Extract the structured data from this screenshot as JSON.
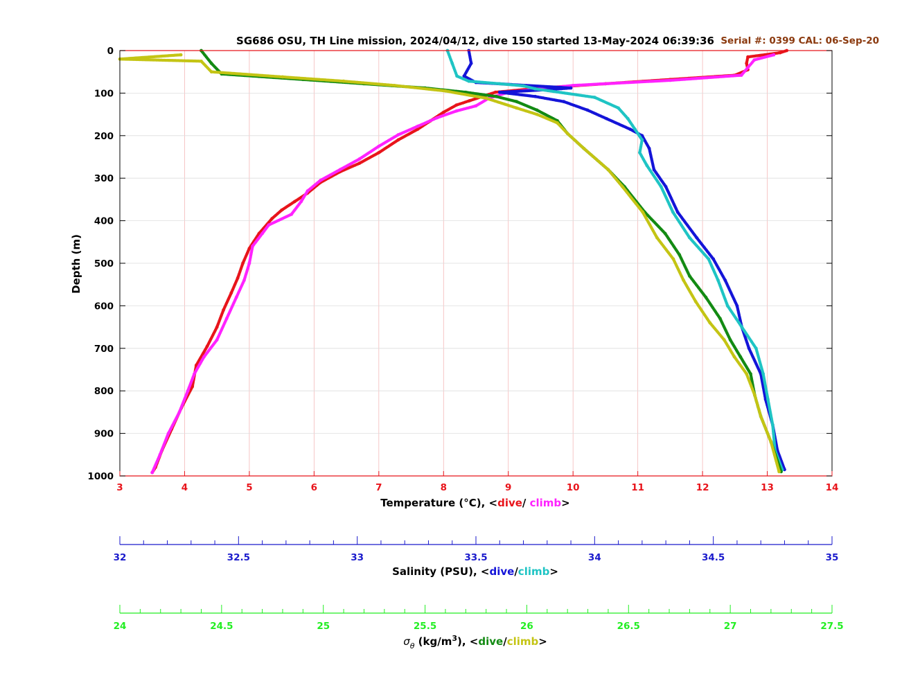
{
  "chart_data": {
    "type": "scatter",
    "title": "SG686 OSU, TH Line mission, 2024/04/12, dive 150 started 13-May-2024 06:39:36",
    "annotation": "Serial #: 0399  CAL: 06-Sep-20",
    "ylabel": "Depth (m)",
    "ylim": [
      1000,
      0
    ],
    "yticks": [
      0,
      100,
      200,
      300,
      400,
      500,
      600,
      700,
      800,
      900,
      1000
    ],
    "grid": true,
    "colors": {
      "temperature_axis": "#e8141b",
      "salinity_axis": "#1a1acc",
      "density_axis": "#22ee22",
      "temp_dive": "#e8141b",
      "temp_climb": "#ff22ff",
      "sal_dive": "#1414d8",
      "sal_climb": "#1fc4c4",
      "dens_dive": "#138a13",
      "dens_climb": "#c4c414",
      "annotation": "#8b3a0f"
    },
    "axes": {
      "temperature": {
        "label_prefix": "Temperature (°C), <",
        "dive_word": "dive",
        "separator": "/ ",
        "climb_word": "climb",
        "label_suffix": ">",
        "range": [
          3,
          14
        ],
        "ticks": [
          "3",
          "4",
          "5",
          "6",
          "7",
          "8",
          "9",
          "10",
          "11",
          "12",
          "13",
          "14"
        ]
      },
      "salinity": {
        "label_prefix": "Salinity (PSU), <",
        "dive_word": "dive",
        "separator": "/",
        "climb_word": "climb",
        "label_suffix": ">",
        "range": [
          32,
          35
        ],
        "ticks": [
          "32",
          "32.5",
          "33",
          "33.5",
          "34",
          "34.5",
          "35"
        ]
      },
      "density": {
        "label_symbol": "σ",
        "label_subscript": "θ",
        "label_unit": " (kg/m",
        "label_sup": "3",
        "label_unit_end": "), <",
        "dive_word": "dive",
        "separator": "/",
        "climb_word": "climb",
        "label_suffix": ">",
        "range": [
          24,
          27.5
        ],
        "ticks": [
          "24",
          "24.5",
          "25",
          "25.5",
          "26",
          "26.5",
          "27",
          "27.5"
        ]
      }
    },
    "series": [
      {
        "name": "dive",
        "quantity": "temperature",
        "points": [
          [
            13.3,
            0
          ],
          [
            13.2,
            5
          ],
          [
            12.7,
            15
          ],
          [
            12.68,
            30
          ],
          [
            12.7,
            45
          ],
          [
            12.5,
            58
          ],
          [
            11.5,
            68
          ],
          [
            10.5,
            78
          ],
          [
            9.5,
            88
          ],
          [
            8.8,
            98
          ],
          [
            8.6,
            108
          ],
          [
            8.4,
            118
          ],
          [
            8.2,
            128
          ],
          [
            8.0,
            145
          ],
          [
            7.8,
            165
          ],
          [
            7.6,
            185
          ],
          [
            7.3,
            210
          ],
          [
            7.0,
            240
          ],
          [
            6.7,
            265
          ],
          [
            6.4,
            285
          ],
          [
            6.1,
            310
          ],
          [
            5.9,
            335
          ],
          [
            5.7,
            355
          ],
          [
            5.5,
            375
          ],
          [
            5.35,
            395
          ],
          [
            5.15,
            430
          ],
          [
            5.0,
            465
          ],
          [
            4.9,
            500
          ],
          [
            4.82,
            535
          ],
          [
            4.72,
            570
          ],
          [
            4.6,
            610
          ],
          [
            4.5,
            650
          ],
          [
            4.35,
            695
          ],
          [
            4.18,
            740
          ],
          [
            4.12,
            790
          ],
          [
            3.95,
            840
          ],
          [
            3.8,
            890
          ],
          [
            3.65,
            940
          ],
          [
            3.55,
            980
          ],
          [
            3.5,
            992
          ]
        ]
      },
      {
        "name": "climb",
        "quantity": "temperature",
        "points": [
          [
            13.1,
            10
          ],
          [
            12.8,
            22
          ],
          [
            12.7,
            40
          ],
          [
            12.6,
            58
          ],
          [
            11.5,
            70
          ],
          [
            10.0,
            82
          ],
          [
            9.0,
            98
          ],
          [
            8.7,
            112
          ],
          [
            8.5,
            130
          ],
          [
            8.2,
            142
          ],
          [
            7.9,
            158
          ],
          [
            7.6,
            178
          ],
          [
            7.3,
            198
          ],
          [
            7.0,
            225
          ],
          [
            6.7,
            255
          ],
          [
            6.4,
            280
          ],
          [
            6.1,
            305
          ],
          [
            5.9,
            330
          ],
          [
            5.8,
            355
          ],
          [
            5.65,
            385
          ],
          [
            5.3,
            410
          ],
          [
            5.2,
            430
          ],
          [
            5.05,
            460
          ],
          [
            5.0,
            500
          ],
          [
            4.92,
            540
          ],
          [
            4.8,
            580
          ],
          [
            4.65,
            630
          ],
          [
            4.5,
            680
          ],
          [
            4.3,
            720
          ],
          [
            4.15,
            760
          ],
          [
            4.05,
            800
          ],
          [
            3.92,
            850
          ],
          [
            3.75,
            900
          ],
          [
            3.62,
            950
          ],
          [
            3.5,
            992
          ]
        ]
      },
      {
        "name": "dive",
        "quantity": "salinity",
        "points": [
          [
            33.47,
            0
          ],
          [
            33.48,
            30
          ],
          [
            33.45,
            60
          ],
          [
            33.5,
            75
          ],
          [
            33.9,
            88
          ],
          [
            33.8,
            92
          ],
          [
            33.6,
            98
          ],
          [
            33.75,
            108
          ],
          [
            33.87,
            120
          ],
          [
            33.97,
            140
          ],
          [
            34.05,
            160
          ],
          [
            34.15,
            185
          ],
          [
            34.2,
            200
          ],
          [
            34.23,
            230
          ],
          [
            34.25,
            280
          ],
          [
            34.3,
            320
          ],
          [
            34.35,
            380
          ],
          [
            34.43,
            440
          ],
          [
            34.5,
            490
          ],
          [
            34.55,
            540
          ],
          [
            34.6,
            600
          ],
          [
            34.62,
            650
          ],
          [
            34.65,
            700
          ],
          [
            34.7,
            760
          ],
          [
            34.72,
            820
          ],
          [
            34.75,
            880
          ],
          [
            34.77,
            940
          ],
          [
            34.8,
            985
          ]
        ]
      },
      {
        "name": "climb",
        "quantity": "salinity",
        "points": [
          [
            33.38,
            0
          ],
          [
            33.4,
            30
          ],
          [
            33.42,
            60
          ],
          [
            33.47,
            72
          ],
          [
            33.6,
            78
          ],
          [
            33.7,
            83
          ],
          [
            33.75,
            90
          ],
          [
            34.0,
            110
          ],
          [
            34.1,
            135
          ],
          [
            34.14,
            160
          ],
          [
            34.17,
            185
          ],
          [
            34.2,
            210
          ],
          [
            34.19,
            240
          ],
          [
            34.22,
            270
          ],
          [
            34.28,
            320
          ],
          [
            34.33,
            380
          ],
          [
            34.4,
            440
          ],
          [
            34.48,
            490
          ],
          [
            34.52,
            540
          ],
          [
            34.56,
            600
          ],
          [
            34.62,
            650
          ],
          [
            34.68,
            700
          ],
          [
            34.71,
            760
          ],
          [
            34.73,
            820
          ],
          [
            34.75,
            880
          ],
          [
            34.76,
            940
          ],
          [
            34.79,
            985
          ]
        ]
      },
      {
        "name": "dive",
        "quantity": "density",
        "points": [
          [
            24.4,
            0
          ],
          [
            24.45,
            30
          ],
          [
            24.5,
            55
          ],
          [
            24.9,
            68
          ],
          [
            25.2,
            78
          ],
          [
            25.5,
            88
          ],
          [
            25.7,
            98
          ],
          [
            25.85,
            108
          ],
          [
            25.95,
            120
          ],
          [
            26.05,
            140
          ],
          [
            26.15,
            165
          ],
          [
            26.2,
            195
          ],
          [
            26.28,
            230
          ],
          [
            26.4,
            280
          ],
          [
            26.48,
            320
          ],
          [
            26.58,
            380
          ],
          [
            26.68,
            430
          ],
          [
            26.75,
            480
          ],
          [
            26.8,
            530
          ],
          [
            26.88,
            580
          ],
          [
            26.95,
            630
          ],
          [
            27.0,
            680
          ],
          [
            27.05,
            720
          ],
          [
            27.1,
            760
          ],
          [
            27.12,
            810
          ],
          [
            27.15,
            860
          ],
          [
            27.2,
            920
          ],
          [
            27.25,
            990
          ]
        ]
      },
      {
        "name": "climb",
        "quantity": "density",
        "points": [
          [
            24.3,
            10
          ],
          [
            24.0,
            20
          ],
          [
            24.4,
            25
          ],
          [
            24.45,
            50
          ],
          [
            24.8,
            62
          ],
          [
            25.1,
            72
          ],
          [
            25.35,
            82
          ],
          [
            25.6,
            95
          ],
          [
            25.8,
            112
          ],
          [
            25.95,
            135
          ],
          [
            26.05,
            150
          ],
          [
            26.15,
            170
          ],
          [
            26.2,
            195
          ],
          [
            26.28,
            230
          ],
          [
            26.4,
            280
          ],
          [
            26.47,
            320
          ],
          [
            26.57,
            380
          ],
          [
            26.64,
            440
          ],
          [
            26.72,
            490
          ],
          [
            26.77,
            540
          ],
          [
            26.83,
            590
          ],
          [
            26.9,
            640
          ],
          [
            26.97,
            680
          ],
          [
            27.02,
            720
          ],
          [
            27.08,
            760
          ],
          [
            27.12,
            810
          ],
          [
            27.15,
            860
          ],
          [
            27.2,
            920
          ],
          [
            27.24,
            990
          ]
        ]
      }
    ]
  }
}
